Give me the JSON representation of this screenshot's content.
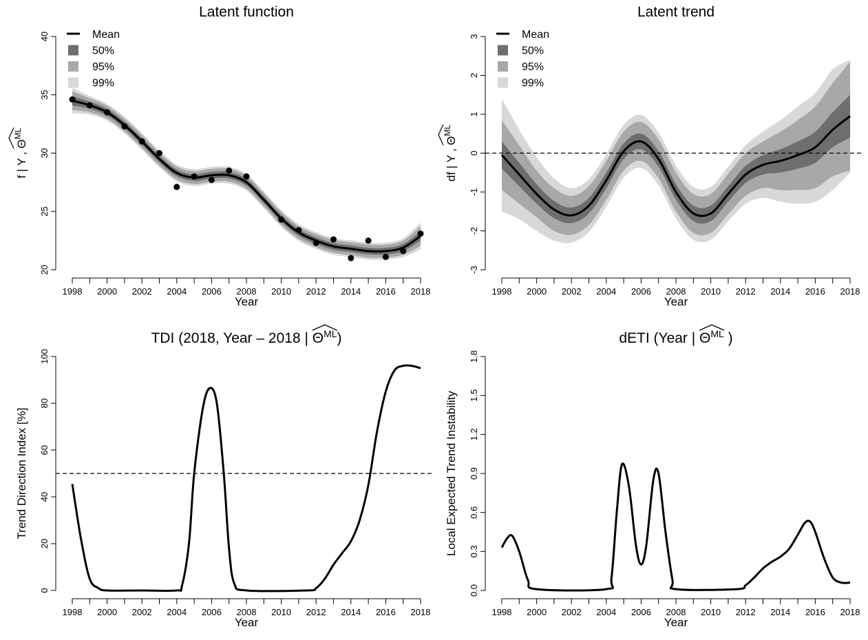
{
  "colors": {
    "line": "#000000",
    "band50": "#6e6e6e",
    "band95": "#a8a8a8",
    "band99": "#d8d8d8"
  },
  "chart_data": [
    {
      "id": "latent-function",
      "type": "line",
      "title": "Latent function",
      "xlabel": "Year",
      "ylabel": "f | Y , Θ^ML",
      "xlim": [
        1998,
        2018
      ],
      "ylim": [
        20,
        40
      ],
      "x_ticks": [
        1998,
        2000,
        2002,
        2004,
        2006,
        2008,
        2010,
        2012,
        2014,
        2016,
        2018
      ],
      "x_minor_ticks": [
        1998,
        1999,
        2000,
        2001,
        2002,
        2003,
        2004,
        2005,
        2006,
        2007,
        2008,
        2009,
        2010,
        2011,
        2012,
        2013,
        2014,
        2015,
        2016,
        2017,
        2018
      ],
      "y_ticks": [
        20,
        25,
        30,
        35,
        40
      ],
      "legend": {
        "position": "top-left",
        "entries": [
          "Mean",
          "50%",
          "95%",
          "99%"
        ]
      },
      "x": [
        1998,
        1999,
        2000,
        2001,
        2002,
        2003,
        2004,
        2005,
        2006,
        2007,
        2008,
        2009,
        2010,
        2011,
        2012,
        2013,
        2014,
        2015,
        2016,
        2017,
        2018
      ],
      "mean": [
        34.5,
        34.1,
        33.5,
        32.4,
        31.0,
        29.5,
        28.3,
        27.9,
        28.1,
        28.1,
        27.5,
        26.0,
        24.4,
        23.2,
        22.5,
        22.0,
        21.8,
        21.6,
        21.6,
        21.9,
        22.9
      ],
      "half_width": {
        "50%": [
          0.4,
          0.3,
          0.28,
          0.28,
          0.28,
          0.28,
          0.28,
          0.28,
          0.28,
          0.28,
          0.28,
          0.28,
          0.28,
          0.28,
          0.28,
          0.28,
          0.28,
          0.28,
          0.28,
          0.3,
          0.4
        ],
        "95%": [
          0.8,
          0.6,
          0.55,
          0.55,
          0.55,
          0.55,
          0.55,
          0.55,
          0.55,
          0.55,
          0.55,
          0.55,
          0.55,
          0.55,
          0.55,
          0.55,
          0.55,
          0.55,
          0.55,
          0.6,
          0.85
        ],
        "99%": [
          1.1,
          0.8,
          0.72,
          0.72,
          0.72,
          0.72,
          0.72,
          0.72,
          0.72,
          0.72,
          0.72,
          0.72,
          0.72,
          0.72,
          0.72,
          0.72,
          0.72,
          0.72,
          0.72,
          0.8,
          1.15
        ]
      },
      "points": {
        "x": [
          1998,
          1999,
          2000,
          2001,
          2002,
          2003,
          2004,
          2005,
          2006,
          2007,
          2008,
          2010,
          2011,
          2012,
          2013,
          2014,
          2015,
          2016,
          2017,
          2018
        ],
        "y": [
          34.6,
          34.1,
          33.5,
          32.3,
          31.0,
          30.0,
          27.1,
          28.0,
          27.7,
          28.5,
          28.0,
          24.3,
          23.4,
          22.3,
          22.6,
          21.0,
          22.5,
          21.1,
          21.6,
          23.1
        ]
      }
    },
    {
      "id": "latent-trend",
      "type": "line",
      "title": "Latent trend",
      "xlabel": "Year",
      "ylabel": "df | Y , Θ^ML",
      "xlim": [
        1998,
        2018
      ],
      "ylim": [
        -3,
        3
      ],
      "x_ticks": [
        1998,
        2000,
        2002,
        2004,
        2006,
        2008,
        2010,
        2012,
        2014,
        2016,
        2018
      ],
      "x_minor_ticks": [
        1998,
        1999,
        2000,
        2001,
        2002,
        2003,
        2004,
        2005,
        2006,
        2007,
        2008,
        2009,
        2010,
        2011,
        2012,
        2013,
        2014,
        2015,
        2016,
        2017,
        2018
      ],
      "y_ticks": [
        -3,
        -2,
        -1,
        0,
        1,
        2,
        3
      ],
      "reference_line": 0,
      "legend": {
        "position": "top-left",
        "entries": [
          "Mean",
          "50%",
          "95%",
          "99%"
        ]
      },
      "x": [
        1998,
        1999,
        2000,
        2001,
        2002,
        2003,
        2004,
        2005,
        2006,
        2007,
        2008,
        2009,
        2010,
        2011,
        2012,
        2013,
        2014,
        2015,
        2016,
        2017,
        2018
      ],
      "mean": [
        -0.05,
        -0.55,
        -1.05,
        -1.45,
        -1.6,
        -1.35,
        -0.7,
        0.05,
        0.3,
        -0.15,
        -1.0,
        -1.55,
        -1.55,
        -1.05,
        -0.55,
        -0.3,
        -0.2,
        -0.05,
        0.15,
        0.6,
        0.95
      ],
      "half_width": {
        "50%": [
          0.35,
          0.3,
          0.25,
          0.22,
          0.2,
          0.2,
          0.2,
          0.2,
          0.2,
          0.2,
          0.2,
          0.2,
          0.2,
          0.2,
          0.22,
          0.25,
          0.3,
          0.35,
          0.4,
          0.45,
          0.55
        ],
        "95%": [
          0.9,
          0.75,
          0.6,
          0.55,
          0.5,
          0.5,
          0.5,
          0.5,
          0.5,
          0.5,
          0.5,
          0.5,
          0.5,
          0.52,
          0.55,
          0.6,
          0.75,
          0.9,
          1.05,
          1.2,
          1.4
        ],
        "99%": [
          1.45,
          1.15,
          0.95,
          0.8,
          0.7,
          0.68,
          0.68,
          0.68,
          0.68,
          0.68,
          0.68,
          0.68,
          0.68,
          0.7,
          0.75,
          0.85,
          1.05,
          1.25,
          1.4,
          1.55,
          1.45
        ]
      }
    },
    {
      "id": "tdi",
      "type": "line",
      "title": "TDI (2018, Year – 2018 | Θ^ML)",
      "xlabel": "Year",
      "ylabel": "Trend Direction Index [%]",
      "xlim": [
        1998,
        2018
      ],
      "ylim": [
        0,
        100
      ],
      "x_ticks": [
        1998,
        2000,
        2002,
        2004,
        2006,
        2008,
        2010,
        2012,
        2014,
        2016,
        2018
      ],
      "x_minor_ticks": [
        1998,
        1999,
        2000,
        2001,
        2002,
        2003,
        2004,
        2005,
        2006,
        2007,
        2008,
        2009,
        2010,
        2011,
        2012,
        2013,
        2014,
        2015,
        2016,
        2017,
        2018
      ],
      "y_ticks": [
        0,
        20,
        40,
        60,
        80,
        100
      ],
      "reference_line": 50,
      "x": [
        1998,
        1998.5,
        1999,
        1999.5,
        2000,
        2002,
        2004,
        2004.3,
        2004.7,
        2005,
        2005.5,
        2005.9,
        2006.3,
        2006.7,
        2007,
        2007.3,
        2008,
        2011.5,
        2012,
        2012.5,
        2013,
        2013.5,
        2014,
        2014.5,
        2015,
        2015.5,
        2016,
        2016.5,
        2017,
        2017.5,
        2018
      ],
      "y": [
        45.5,
        22,
        5,
        1,
        0,
        0,
        0,
        2,
        20,
        50,
        78,
        86.5,
        80,
        50,
        18,
        3,
        0,
        0,
        1,
        5,
        11,
        16,
        21,
        30,
        45,
        68,
        85,
        94,
        96,
        96,
        95
      ]
    },
    {
      "id": "deti",
      "type": "line",
      "title": "dETI (Year | Θ^ML )",
      "xlabel": "Year",
      "ylabel": "Local Expected Trend Instability",
      "xlim": [
        1998,
        2018
      ],
      "ylim": [
        0,
        1.8
      ],
      "x_ticks": [
        1998,
        2000,
        2002,
        2004,
        2006,
        2008,
        2010,
        2012,
        2014,
        2016,
        2018
      ],
      "x_minor_ticks": [
        1998,
        1999,
        2000,
        2001,
        2002,
        2003,
        2004,
        2005,
        2006,
        2007,
        2008,
        2009,
        2010,
        2011,
        2012,
        2013,
        2014,
        2015,
        2016,
        2017,
        2018
      ],
      "y_ticks": [
        "0.0",
        "0.3",
        "0.6",
        "0.9",
        "1.2",
        "1.5",
        "1.8"
      ],
      "x": [
        1998,
        1998.3,
        1998.6,
        1999,
        1999.5,
        2000,
        2004,
        2004.3,
        2004.6,
        2004.9,
        2005.3,
        2005.7,
        2006,
        2006.3,
        2006.7,
        2007,
        2007.4,
        2007.8,
        2008,
        2011.5,
        2012,
        2012.5,
        2013,
        2013.5,
        2014,
        2014.5,
        2015,
        2015.4,
        2015.7,
        2016,
        2016.5,
        2017,
        2017.5,
        2018
      ],
      "y": [
        0.33,
        0.4,
        0.42,
        0.3,
        0.08,
        0.01,
        0.01,
        0.1,
        0.6,
        0.97,
        0.8,
        0.35,
        0.2,
        0.35,
        0.85,
        0.9,
        0.45,
        0.08,
        0.01,
        0.01,
        0.04,
        0.1,
        0.17,
        0.22,
        0.26,
        0.32,
        0.43,
        0.52,
        0.53,
        0.45,
        0.25,
        0.1,
        0.06,
        0.06
      ]
    }
  ]
}
